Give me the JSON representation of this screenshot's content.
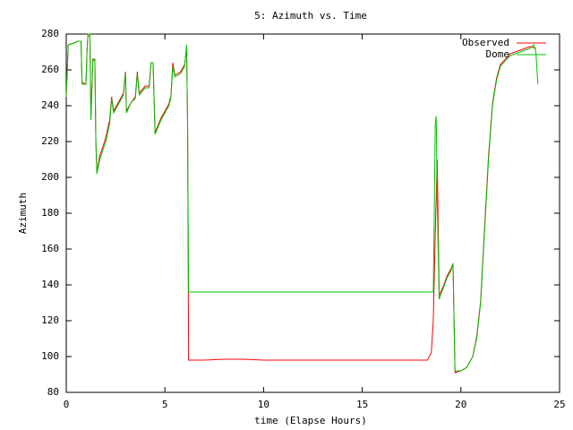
{
  "chart_data": {
    "type": "line",
    "title": "5: Azimuth vs. Time",
    "xlabel": "time (Elapse Hours)",
    "ylabel": "Azimuth",
    "xlim": [
      0,
      25
    ],
    "ylim": [
      80,
      280
    ],
    "xticks": [
      0,
      5,
      10,
      15,
      20,
      25
    ],
    "yticks": [
      80,
      100,
      120,
      140,
      160,
      180,
      200,
      220,
      240,
      260,
      280
    ],
    "legend": "top-right",
    "series": [
      {
        "name": "Observed",
        "color": "#ff0000",
        "x": [
          0,
          0.1,
          0.4,
          0.6,
          0.75,
          0.8,
          1.0,
          1.05,
          1.1,
          1.2,
          1.25,
          1.35,
          1.45,
          1.5,
          1.55,
          1.7,
          2.0,
          2.2,
          2.3,
          2.4,
          2.6,
          2.9,
          3.0,
          3.05,
          3.3,
          3.5,
          3.6,
          3.7,
          4.0,
          4.2,
          4.3,
          4.4,
          4.5,
          4.8,
          5.0,
          5.2,
          5.3,
          5.4,
          5.5,
          5.8,
          6.0,
          6.1,
          6.15,
          6.2,
          7,
          8,
          9,
          10,
          15,
          18.3,
          18.4,
          18.5,
          18.6,
          18.7,
          18.8,
          18.9,
          19.1,
          19.3,
          19.5,
          19.6,
          19.7,
          20.0,
          20.3,
          20.6,
          20.8,
          21.0,
          21.2,
          21.4,
          21.6,
          21.8,
          22.0,
          22.5,
          23.0,
          23.5,
          23.8
        ],
        "values": [
          245,
          274,
          275,
          276,
          276,
          253,
          252,
          270,
          279,
          279,
          233,
          266,
          265,
          220,
          203,
          212,
          222,
          232,
          245,
          237,
          241,
          247,
          259,
          237,
          242,
          245,
          259,
          247,
          251,
          251,
          264,
          264,
          225,
          233,
          237,
          241,
          245,
          264,
          257,
          259,
          263,
          272,
          230,
          98,
          98,
          98.5,
          98.5,
          98,
          98,
          98,
          100,
          102,
          120,
          168,
          210,
          134,
          139,
          145,
          149,
          152,
          91,
          92,
          94,
          100,
          111,
          131,
          172,
          212,
          241,
          255,
          263,
          269,
          271,
          273,
          272
        ]
      },
      {
        "name": "Dome",
        "color": "#00c000",
        "x": [
          0,
          0.1,
          0.4,
          0.6,
          0.75,
          0.8,
          1.0,
          1.05,
          1.1,
          1.2,
          1.25,
          1.35,
          1.45,
          1.5,
          1.55,
          1.7,
          2.0,
          2.2,
          2.3,
          2.4,
          2.6,
          2.9,
          3.0,
          3.05,
          3.3,
          3.5,
          3.6,
          3.7,
          4.0,
          4.2,
          4.3,
          4.4,
          4.5,
          4.8,
          5.0,
          5.2,
          5.3,
          5.4,
          5.5,
          5.8,
          6.0,
          6.1,
          6.15,
          6.2,
          18.6,
          18.65,
          18.7,
          18.75,
          18.8,
          18.9,
          19.1,
          19.3,
          19.5,
          19.6,
          19.7,
          20.0,
          20.3,
          20.6,
          20.8,
          21.0,
          21.2,
          21.4,
          21.6,
          21.8,
          22.0,
          22.5,
          23.0,
          23.5,
          23.7,
          23.8,
          23.9
        ],
        "values": [
          245,
          274,
          275,
          276,
          276,
          252,
          252,
          270,
          280,
          280,
          232,
          266,
          266,
          220,
          202,
          210,
          220,
          230,
          244,
          236,
          240,
          246,
          258,
          236,
          242,
          244,
          258,
          246,
          250,
          250,
          264,
          264,
          224,
          232,
          236,
          240,
          244,
          262,
          256,
          258,
          262,
          274,
          228,
          136,
          136,
          180,
          230,
          234,
          186,
          132,
          138,
          144,
          148,
          152,
          92,
          92,
          94,
          100,
          110,
          130,
          170,
          210,
          240,
          254,
          262,
          268,
          270,
          272,
          274,
          270,
          252
        ]
      }
    ]
  }
}
